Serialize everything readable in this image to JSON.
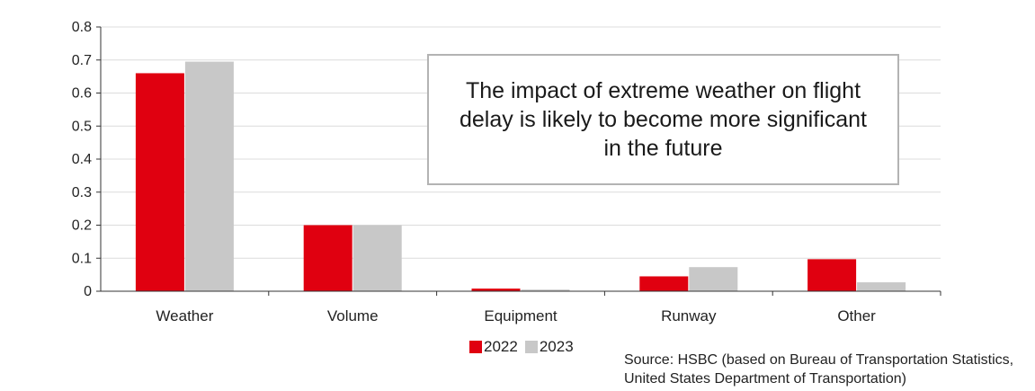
{
  "chart_data": {
    "type": "bar",
    "categories": [
      "Weather",
      "Volume",
      "Equipment",
      "Runway",
      "Other"
    ],
    "series": [
      {
        "name": "2022",
        "color": "#e00010",
        "values": [
          0.66,
          0.2,
          0.008,
          0.045,
          0.097
        ]
      },
      {
        "name": "2023",
        "color": "#c8c8c8",
        "values": [
          0.695,
          0.2,
          0.005,
          0.073,
          0.027
        ]
      }
    ],
    "ylim": [
      0,
      0.8
    ],
    "yticks": [
      "0",
      "0.1",
      "0.2",
      "0.3",
      "0.4",
      "0.5",
      "0.6",
      "0.7",
      "0.8"
    ],
    "grid": true,
    "legend": "bottom-center",
    "annotation": "The impact of extreme weather on flight delay is likely to become more significant in the future"
  },
  "source": "Source: HSBC (based on Bureau of Transportation Statistics, United States Department of Transportation)"
}
